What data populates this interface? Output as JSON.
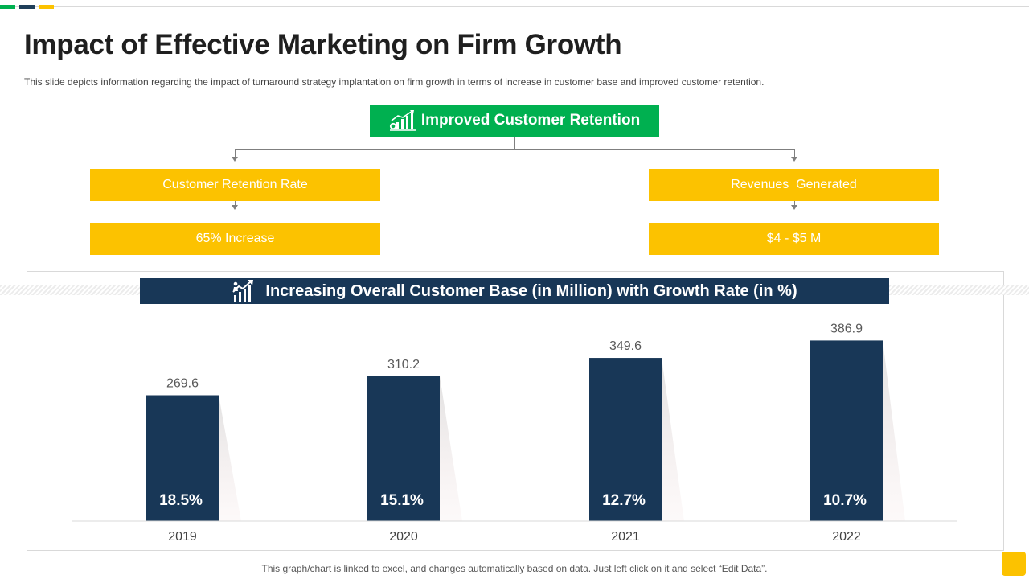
{
  "slide": {
    "title": "Impact of Effective Marketing on Firm Growth",
    "subtitle": "This slide depicts information  regarding the impact of turnaround  strategy implantation on firm growth in terms of increase in customer base and improved  customer retention.",
    "footer_note": "This graph/chart is linked to excel,  and changes automatically based on data. Just left click on it and select “Edit Data”."
  },
  "flow": {
    "root": {
      "label": "Improved Customer Retention",
      "icon": "growth-chart-icon"
    },
    "left": {
      "label": "Customer Retention Rate",
      "value": "65% Increase"
    },
    "right": {
      "label": "Revenues  Generated",
      "value": "$4 - $5 M"
    }
  },
  "chart_header": {
    "title": "Increasing Overall Customer Base (in Million) with Growth Rate (in %)",
    "icon": "rising-arrow-icon"
  },
  "colors": {
    "green": "#00b050",
    "yellow": "#fcc200",
    "navy": "#183757",
    "dark_teal": "#1f3f5a"
  },
  "chart_data": {
    "type": "bar",
    "title": "Increasing Overall Customer Base (in Million) with Growth Rate (in %)",
    "categories": [
      "2019",
      "2020",
      "2021",
      "2022"
    ],
    "values": [
      269.6,
      310.2,
      349.6,
      386.9
    ],
    "value_labels": [
      "269.6",
      "310.2",
      "349.6",
      "386.9"
    ],
    "growth_labels": [
      "18.5%",
      "15.1%",
      "12.7%",
      "10.7%"
    ],
    "ylim": [
      0,
      410
    ],
    "xlabel": "",
    "ylabel": "",
    "grid": false,
    "legend": "none"
  }
}
